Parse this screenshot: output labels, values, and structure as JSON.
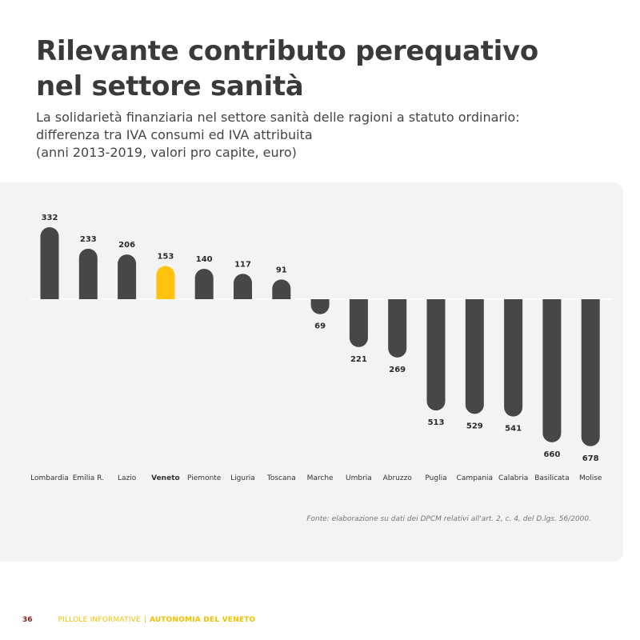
{
  "page": {
    "title_lines": [
      "Rilevante contributo perequativo",
      "nel settore sanità"
    ],
    "subtitle_lines": [
      "La solidarietà finanziaria nel settore sanità delle ragioni a statuto ordinario:",
      "differenza tra IVA consumi ed IVA attribuita",
      "(anni 2013-2019, valori pro capite, euro)"
    ],
    "source": "Fonte: elaborazione su dati dei DPCM relativi all'art. 2, c. 4, del D.lgs. 56/2000.",
    "footer": {
      "page_number": "36",
      "series": "PILLOLE INFORMATIVE",
      "separator": "|",
      "brand": "AUTONOMIA DEL VENETO"
    }
  },
  "colors": {
    "bar": "#474747",
    "highlight": "#ffc20e",
    "panel": "#f3f3f3",
    "zero_line": "#ffffff"
  },
  "chart_data": {
    "type": "bar",
    "categories": [
      "Lombardia",
      "Emilia R.",
      "Lazio",
      "Veneto",
      "Piemonte",
      "Liguria",
      "Toscana",
      "Marche",
      "Umbria",
      "Abruzzo",
      "Puglia",
      "Campania",
      "Calabria",
      "Basilicata",
      "Molise"
    ],
    "values": [
      332,
      233,
      206,
      153,
      140,
      117,
      91,
      -69,
      -221,
      -269,
      -513,
      -529,
      -541,
      -660,
      -678
    ],
    "value_labels": [
      "332",
      "233",
      "206",
      "153",
      "140",
      "117",
      "91",
      "69",
      "221",
      "269",
      "513",
      "529",
      "541",
      "660",
      "678"
    ],
    "highlight_category": "Veneto",
    "ylim": [
      -678,
      332
    ],
    "grid": false,
    "legend": "none"
  }
}
